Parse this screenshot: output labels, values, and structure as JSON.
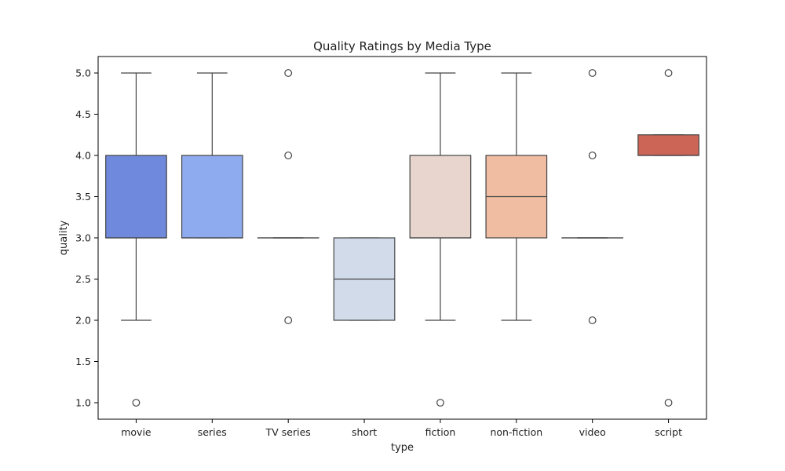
{
  "chart_data": {
    "type": "boxplot",
    "title": "Quality Ratings by Media Type",
    "xlabel": "type",
    "ylabel": "quality",
    "ylim": [
      0.8,
      5.2
    ],
    "yticks": [
      "1.0",
      "1.5",
      "2.0",
      "2.5",
      "3.0",
      "3.5",
      "4.0",
      "4.5",
      "5.0"
    ],
    "grid": false,
    "categories": [
      "movie",
      "series",
      "TV series",
      "short",
      "fiction",
      "non-fiction",
      "video",
      "script"
    ],
    "boxes": [
      {
        "category": "movie",
        "color": "#6f89dd",
        "whisker_low": 2.0,
        "q1": 3.0,
        "median": 3.0,
        "q3": 4.0,
        "whisker_high": 5.0,
        "outliers": [
          1.0
        ]
      },
      {
        "category": "series",
        "color": "#8fabef",
        "whisker_low": 3.0,
        "q1": 3.0,
        "median": 3.0,
        "q3": 4.0,
        "whisker_high": 5.0,
        "outliers": []
      },
      {
        "category": "TV series",
        "color": "#b6cbf6",
        "whisker_low": 3.0,
        "q1": 3.0,
        "median": 3.0,
        "q3": 3.0,
        "whisker_high": 3.0,
        "outliers": [
          2.0,
          4.0,
          5.0
        ]
      },
      {
        "category": "short",
        "color": "#d1dbea",
        "whisker_low": 2.0,
        "q1": 2.0,
        "median": 2.5,
        "q3": 3.0,
        "whisker_high": 3.0,
        "outliers": []
      },
      {
        "category": "fiction",
        "color": "#e8d6ce",
        "whisker_low": 2.0,
        "q1": 3.0,
        "median": 3.0,
        "q3": 4.0,
        "whisker_high": 5.0,
        "outliers": [
          1.0
        ]
      },
      {
        "category": "non-fiction",
        "color": "#f0bda2",
        "whisker_low": 2.0,
        "q1": 3.0,
        "median": 3.5,
        "q3": 4.0,
        "whisker_high": 5.0,
        "outliers": []
      },
      {
        "category": "video",
        "color": "#ef9a7c",
        "whisker_low": 3.0,
        "q1": 3.0,
        "median": 3.0,
        "q3": 3.0,
        "whisker_high": 3.0,
        "outliers": [
          2.0,
          4.0,
          5.0
        ]
      },
      {
        "category": "script",
        "color": "#cd6557",
        "whisker_low": 4.0,
        "q1": 4.0,
        "median": 4.0,
        "q3": 4.25,
        "whisker_high": 4.25,
        "outliers": [
          1.0,
          5.0
        ]
      }
    ]
  }
}
